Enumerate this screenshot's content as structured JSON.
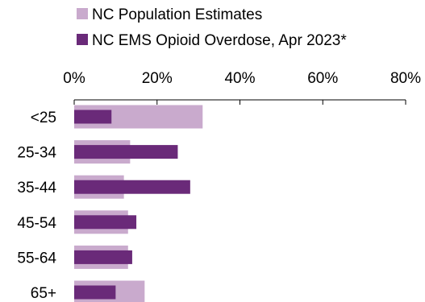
{
  "chart_data": {
    "type": "bar",
    "orientation": "horizontal",
    "categories": [
      "<25",
      "25-34",
      "35-44",
      "45-54",
      "55-64",
      "65+"
    ],
    "series": [
      {
        "name": "NC Population Estimates",
        "values": [
          31,
          13.5,
          12,
          13,
          13,
          17
        ],
        "color": "#c9aacd"
      },
      {
        "name": "NC EMS Opioid Overdose, Apr 2023*",
        "values": [
          9,
          25,
          28,
          15,
          14,
          10
        ],
        "color": "#6a2a79"
      }
    ],
    "title": "",
    "xlabel": "",
    "ylabel": "",
    "xlim": [
      0,
      80
    ],
    "xticks": [
      "0%",
      "20%",
      "40%",
      "60%",
      "80%"
    ],
    "legend_position": "top",
    "axis_position": "top",
    "grid": false
  }
}
